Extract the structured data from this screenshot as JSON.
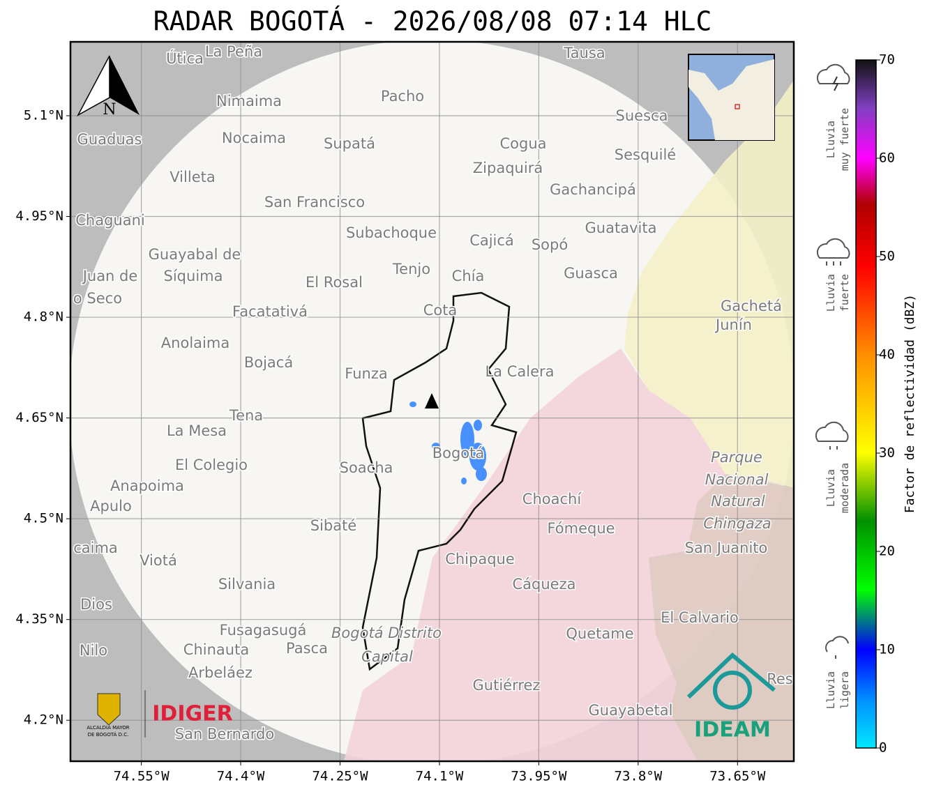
{
  "header": {
    "title": "RADAR BOGOTÁ - 2026/08/08 07:14 HLC"
  },
  "map": {
    "xlim": [
      -74.657,
      -73.565
    ],
    "ylim": [
      4.139,
      5.21
    ],
    "xticks": [
      {
        "value": -74.55,
        "label": "74.55°W"
      },
      {
        "value": -74.4,
        "label": "74.4°W"
      },
      {
        "value": -74.25,
        "label": "74.25°W"
      },
      {
        "value": -74.1,
        "label": "74.1°W"
      },
      {
        "value": -73.95,
        "label": "73.95°W"
      },
      {
        "value": -73.8,
        "label": "73.8°W"
      },
      {
        "value": -73.65,
        "label": "73.65°W"
      }
    ],
    "yticks": [
      {
        "value": 5.1,
        "label": "5.1°N"
      },
      {
        "value": 4.95,
        "label": "4.95°N"
      },
      {
        "value": 4.8,
        "label": "4.8°N"
      },
      {
        "value": 4.65,
        "label": "4.65°N"
      },
      {
        "value": 4.5,
        "label": "4.5°N"
      },
      {
        "value": 4.35,
        "label": "4.35°N"
      },
      {
        "value": 4.2,
        "label": "4.2°N"
      }
    ],
    "north": "N",
    "places": [
      "Útica",
      "La Peña",
      "Tausa",
      "Pacho",
      "Nimaima",
      "Suesca",
      "Guaduas",
      "Nocaima",
      "Supatá",
      "Cogua",
      "Sesquilé",
      "Villeta",
      "Zipaquirá",
      "Gachancipá",
      "San Francisco",
      "Chaguani",
      "Guatavita",
      "Subachoque",
      "Cajicá",
      "Sopó",
      "Guayabal de",
      "Síquima",
      "Juan de",
      "Tenjo",
      "Guasca",
      "El Rosal",
      "Chía",
      "o Seco",
      "Gachetá",
      "Junín",
      "Facatativá",
      "Cota",
      "Anolaima",
      "Bojacá",
      "Funza",
      "La Calera",
      "Tena",
      "La Mesa",
      "El Colegio",
      "Soacha",
      "Bogotá",
      "Parque",
      "Nacional",
      "Natural",
      "Chingaza",
      "Anapoima",
      "Apulo",
      "Choachí",
      "Sibaté",
      "Fómeque",
      "San Juanito",
      "caima",
      "Viotá",
      "Chipaque",
      "Cáqueza",
      "Silvania",
      "Dios",
      "El Calvario",
      "Fusagasugá",
      "Bogotá Distrito",
      "Capital",
      "Quetame",
      "Nilo",
      "Chinauta",
      "Pasca",
      "Arbeláez",
      "Gutiérrez",
      "Guayabetal",
      "San Bernardo",
      "Res"
    ]
  },
  "colorbar": {
    "label": "Factor de reflectividad (dBZ)",
    "lim": [
      0,
      70
    ],
    "ticks": [
      0,
      10,
      20,
      30,
      40,
      50,
      60,
      70
    ]
  },
  "levels": [
    [
      "Lluvia",
      "muy fuerte"
    ],
    [
      "Lluvia",
      "fuerte"
    ],
    [
      "Lluvia",
      "moderada"
    ],
    [
      "Lluvia",
      "ligera"
    ]
  ],
  "logos": {
    "alcaldia": [
      "ALCALDÍA MAYOR",
      "DE BOGOTÁ D.C."
    ],
    "idiger": "IDIGER",
    "ideam": "IDEAM"
  }
}
